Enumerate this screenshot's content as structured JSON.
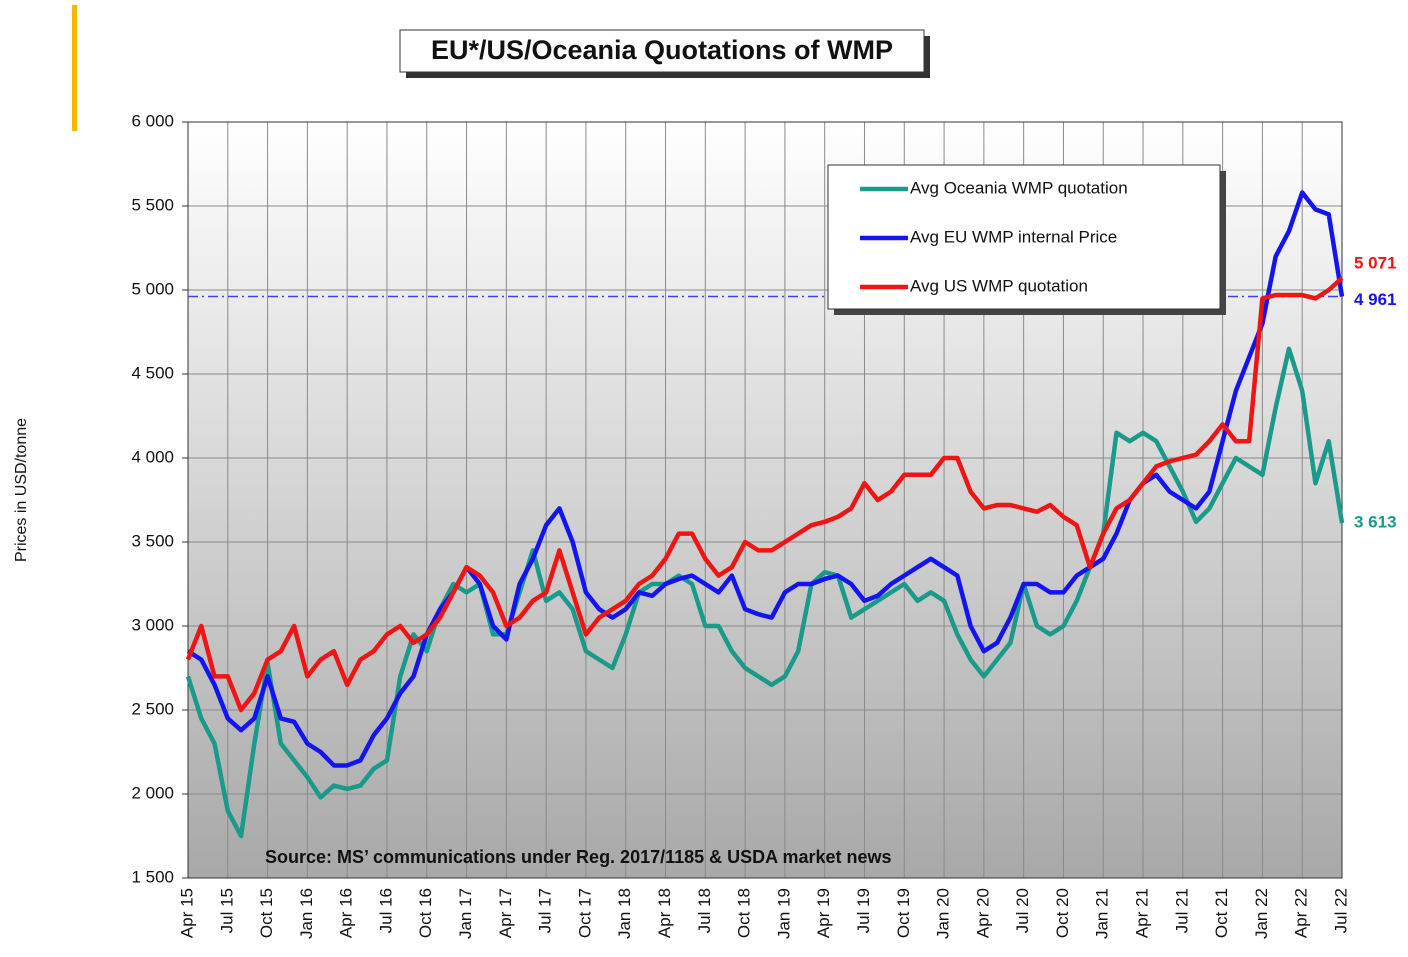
{
  "chart_data": {
    "type": "line",
    "title": "EU*/US/Oceania Quotations of WMP",
    "y_label": "Prices in USD/tonne",
    "source": "Source: MS’ communications under Reg. 2017/1185  & USDA market news",
    "categories": [
      "Apr 15",
      null,
      null,
      "Jul 15",
      null,
      null,
      "Oct 15",
      null,
      null,
      "Jan 16",
      null,
      null,
      "Apr 16",
      null,
      null,
      "Jul 16",
      null,
      null,
      "Oct 16",
      null,
      null,
      "Jan 17",
      null,
      null,
      "Apr 17",
      null,
      null,
      "Jul 17",
      null,
      null,
      "Oct 17",
      null,
      null,
      "Jan 18",
      null,
      null,
      "Apr 18",
      null,
      null,
      "Jul 18",
      null,
      null,
      "Oct 18",
      null,
      null,
      "Jan 19",
      null,
      null,
      "Apr 19",
      null,
      null,
      "Jul 19",
      null,
      null,
      "Oct 19",
      null,
      null,
      "Jan 20",
      null,
      null,
      "Apr 20",
      null,
      null,
      "Jul 20",
      null,
      null,
      "Oct 20",
      null,
      null,
      "Jan 21",
      null,
      null,
      "Apr 21",
      null,
      null,
      "Jul 21",
      null,
      null,
      "Oct 21",
      null,
      null,
      "Jan 22",
      null,
      null,
      "Apr 22",
      null,
      null,
      "Jul 22"
    ],
    "series": [
      {
        "name": "Avg Oceania WMP quotation",
        "color": "#1a9a8a",
        "values": [
          2700,
          2450,
          2300,
          1900,
          1750,
          2300,
          2780,
          2300,
          2200,
          2100,
          1980,
          2050,
          2030,
          2050,
          2150,
          2200,
          2700,
          2950,
          2850,
          3100,
          3250,
          3200,
          3250,
          2950,
          2950,
          3200,
          3450,
          3150,
          3200,
          3100,
          2850,
          2800,
          2750,
          2950,
          3200,
          3250,
          3250,
          3300,
          3250,
          3000,
          3000,
          2850,
          2750,
          2700,
          2650,
          2700,
          2850,
          3250,
          3320,
          3300,
          3050,
          3100,
          3150,
          3200,
          3250,
          3150,
          3200,
          3150,
          2950,
          2800,
          2700,
          2800,
          2900,
          3250,
          3000,
          2950,
          3000,
          3150,
          3350,
          3550,
          4150,
          4100,
          4150,
          4100,
          3950,
          3800,
          3620,
          3700,
          3850,
          4000,
          3950,
          3900,
          4300,
          4650,
          4400,
          3850,
          4100,
          3613
        ],
        "value_labels": [
          null,
          null,
          null,
          null,
          null,
          null,
          null,
          null,
          null,
          null,
          null,
          null,
          null,
          null,
          null,
          null,
          null,
          null,
          null,
          null,
          null,
          null,
          null,
          null,
          null,
          null,
          null,
          null,
          null,
          null,
          null,
          null,
          null,
          null,
          null,
          null,
          null,
          null,
          null,
          null,
          null,
          null,
          null,
          null,
          null,
          null,
          null,
          null,
          null,
          null,
          null,
          null,
          null,
          null,
          null,
          null,
          null,
          null,
          null,
          null,
          null,
          null,
          null,
          null,
          null,
          null,
          null,
          null,
          null,
          null,
          null,
          null,
          null,
          null,
          null,
          null,
          null,
          null,
          null,
          null,
          null,
          null,
          null,
          null,
          null,
          null,
          null,
          "3 613"
        ]
      },
      {
        "name": "Avg EU WMP internal Price",
        "color": "#1414f0",
        "values": [
          2850,
          2800,
          2650,
          2450,
          2380,
          2450,
          2700,
          2450,
          2430,
          2300,
          2250,
          2170,
          2170,
          2200,
          2350,
          2450,
          2600,
          2700,
          2950,
          3100,
          3200,
          3350,
          3250,
          3000,
          2920,
          3250,
          3400,
          3600,
          3700,
          3500,
          3200,
          3100,
          3050,
          3100,
          3200,
          3180,
          3250,
          3280,
          3300,
          3250,
          3200,
          3300,
          3100,
          3070,
          3050,
          3200,
          3250,
          3250,
          3280,
          3300,
          3250,
          3150,
          3180,
          3250,
          3300,
          3350,
          3400,
          3350,
          3300,
          3000,
          2850,
          2900,
          3050,
          3250,
          3250,
          3200,
          3200,
          3300,
          3350,
          3400,
          3550,
          3750,
          3850,
          3900,
          3800,
          3750,
          3700,
          3800,
          4100,
          4400,
          4600,
          4800,
          5200,
          5350,
          5580,
          5480,
          5450,
          4961
        ],
        "value_labels": [
          null,
          null,
          null,
          null,
          null,
          null,
          null,
          null,
          null,
          null,
          null,
          null,
          null,
          null,
          null,
          null,
          null,
          null,
          null,
          null,
          null,
          null,
          null,
          null,
          null,
          null,
          null,
          null,
          null,
          null,
          null,
          null,
          null,
          null,
          null,
          null,
          null,
          null,
          null,
          null,
          null,
          null,
          null,
          null,
          null,
          null,
          null,
          null,
          null,
          null,
          null,
          null,
          null,
          null,
          null,
          null,
          null,
          null,
          null,
          null,
          null,
          null,
          null,
          null,
          null,
          null,
          null,
          null,
          null,
          null,
          null,
          null,
          null,
          null,
          null,
          null,
          null,
          null,
          null,
          null,
          null,
          null,
          null,
          null,
          null,
          null,
          null,
          "4 961"
        ]
      },
      {
        "name": "Avg US WMP quotation",
        "color": "#f01414",
        "values": [
          2800,
          3000,
          2700,
          2700,
          2500,
          2600,
          2800,
          2850,
          3000,
          2700,
          2800,
          2850,
          2650,
          2800,
          2850,
          2950,
          3000,
          2900,
          2950,
          3050,
          3200,
          3350,
          3300,
          3200,
          3000,
          3050,
          3150,
          3200,
          3450,
          3200,
          2950,
          3050,
          3100,
          3150,
          3250,
          3300,
          3400,
          3550,
          3550,
          3400,
          3300,
          3350,
          3500,
          3450,
          3450,
          3500,
          3550,
          3600,
          3620,
          3650,
          3700,
          3850,
          3750,
          3800,
          3900,
          3900,
          3900,
          4000,
          4000,
          3800,
          3700,
          3720,
          3720,
          3700,
          3680,
          3720,
          3650,
          3600,
          3350,
          3550,
          3700,
          3750,
          3850,
          3950,
          3980,
          4000,
          4020,
          4100,
          4200,
          4100,
          4100,
          4950,
          4970,
          4970,
          4970,
          4950,
          5000,
          5071
        ],
        "value_labels": [
          null,
          null,
          null,
          null,
          null,
          null,
          null,
          null,
          null,
          null,
          null,
          null,
          null,
          null,
          null,
          null,
          null,
          null,
          null,
          null,
          null,
          null,
          null,
          null,
          null,
          null,
          null,
          null,
          null,
          null,
          null,
          null,
          null,
          null,
          null,
          null,
          null,
          null,
          null,
          null,
          null,
          null,
          null,
          null,
          null,
          null,
          null,
          null,
          null,
          null,
          null,
          null,
          null,
          null,
          null,
          null,
          null,
          null,
          null,
          null,
          null,
          null,
          null,
          null,
          null,
          null,
          null,
          null,
          null,
          null,
          null,
          null,
          null,
          null,
          null,
          null,
          null,
          null,
          null,
          null,
          null,
          null,
          null,
          null,
          null,
          null,
          null,
          "5 071"
        ]
      }
    ],
    "reference_line": {
      "value": 4961,
      "color": "#4040f0"
    },
    "ylim": [
      1500,
      6000
    ],
    "yticks": [
      {
        "value": 1500,
        "label": "1 500"
      },
      {
        "value": 2000,
        "label": "2 000"
      },
      {
        "value": 2500,
        "label": "2 500"
      },
      {
        "value": 3000,
        "label": "3 000"
      },
      {
        "value": 3500,
        "label": "3 500"
      },
      {
        "value": 4000,
        "label": "4 000"
      },
      {
        "value": 4500,
        "label": "4 500"
      },
      {
        "value": 5000,
        "label": "5 000"
      },
      {
        "value": 5500,
        "label": "5 500"
      },
      {
        "value": 6000,
        "label": "6 000"
      }
    ],
    "grid": true
  }
}
